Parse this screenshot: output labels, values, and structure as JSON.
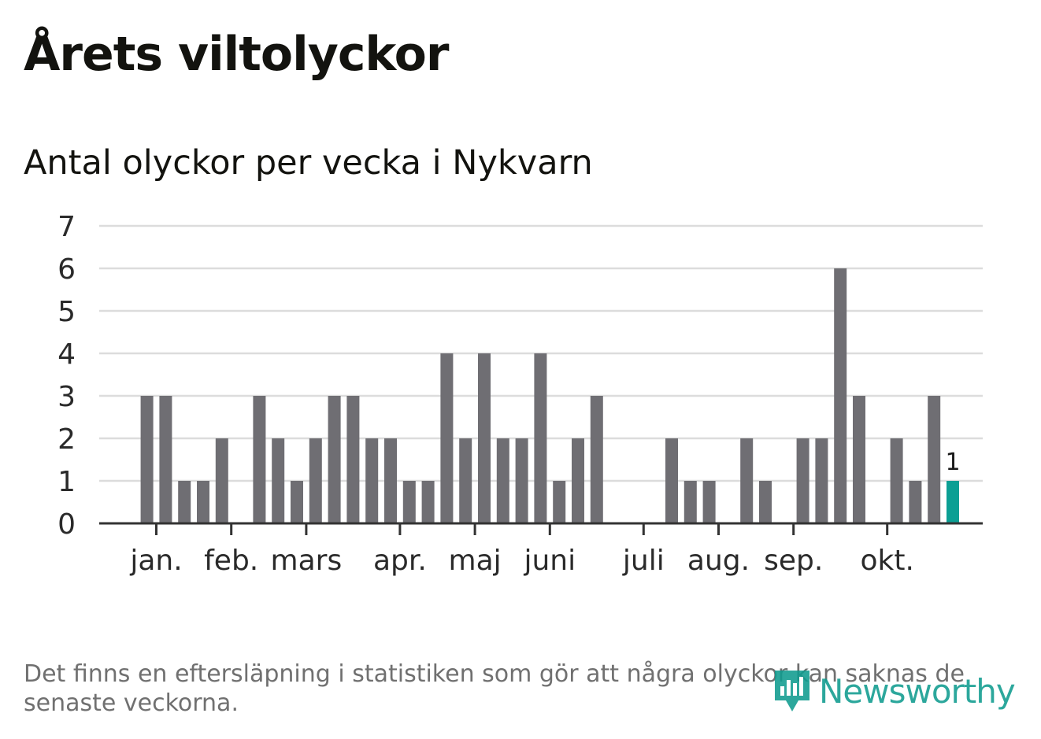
{
  "header": {
    "title": "Årets viltolyckor",
    "subtitle": "Antal olyckor per vecka i Nykvarn"
  },
  "footnote": "Det finns en eftersläpning i statistiken som gör att några olyckor kan saknas de senaste veckorna.",
  "brand": {
    "name": "Newsworthy",
    "logo_icon": "bar-chart-speech-bubble-icon"
  },
  "colors": {
    "bar": "#6f6e73",
    "highlight": "#0c9f94",
    "grid": "#dcdcdc",
    "axis": "#333333",
    "brand": "#0f9c8f"
  },
  "chart_data": {
    "type": "bar",
    "title": "Antal olyckor per vecka i Nykvarn",
    "xlabel": "",
    "ylabel": "",
    "ylim": [
      0,
      7
    ],
    "yticks": [
      0,
      1,
      2,
      3,
      4,
      5,
      6,
      7
    ],
    "grid": true,
    "x_unit": "week",
    "weeks": [
      1,
      2,
      3,
      4,
      5,
      6,
      7,
      8,
      9,
      10,
      11,
      12,
      13,
      14,
      15,
      16,
      17,
      18,
      19,
      20,
      21,
      22,
      23,
      24,
      25,
      26,
      27,
      28,
      29,
      30,
      31,
      32,
      33,
      34,
      35,
      36,
      37,
      38,
      39,
      40,
      41,
      42,
      43,
      44,
      45,
      46,
      47
    ],
    "values": [
      0,
      0,
      3,
      3,
      1,
      1,
      2,
      0,
      3,
      2,
      1,
      2,
      3,
      3,
      2,
      2,
      1,
      1,
      4,
      2,
      4,
      2,
      2,
      4,
      1,
      2,
      3,
      0,
      0,
      0,
      2,
      1,
      1,
      0,
      2,
      1,
      0,
      2,
      2,
      6,
      3,
      0,
      2,
      1,
      3,
      1,
      0
    ],
    "highlight": {
      "week": 46,
      "value": 1,
      "label": "1"
    },
    "month_ticks": [
      {
        "label": "jan.",
        "week": 3.5
      },
      {
        "label": "feb.",
        "week": 7.5
      },
      {
        "label": "mars",
        "week": 11.5
      },
      {
        "label": "apr.",
        "week": 16.5
      },
      {
        "label": "maj",
        "week": 20.5
      },
      {
        "label": "juni",
        "week": 24.5
      },
      {
        "label": "juli",
        "week": 29.5
      },
      {
        "label": "aug.",
        "week": 33.5
      },
      {
        "label": "sep.",
        "week": 37.5
      },
      {
        "label": "okt.",
        "week": 42.5
      }
    ]
  }
}
